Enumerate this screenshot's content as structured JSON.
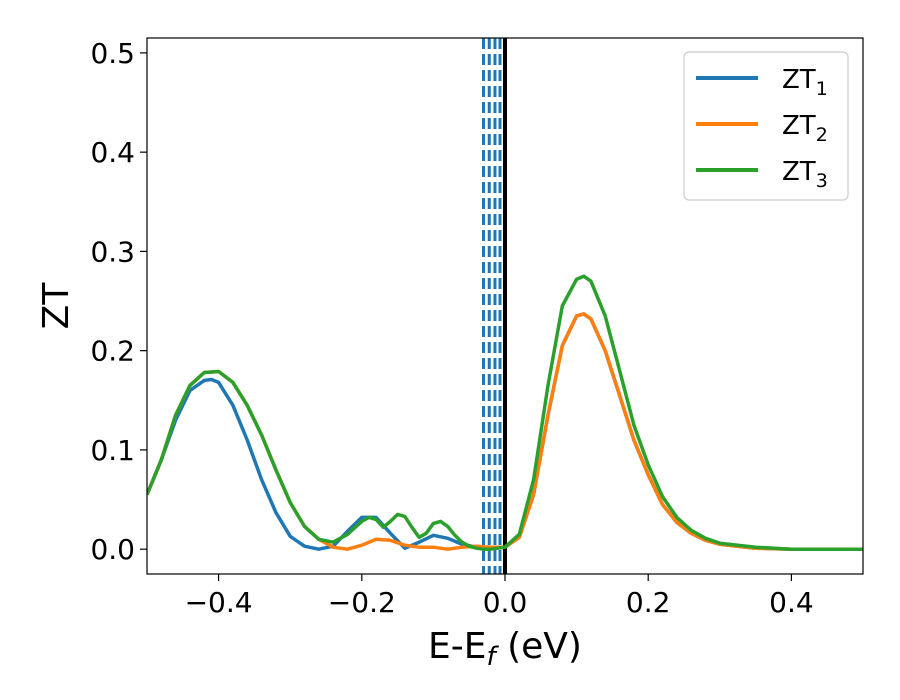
{
  "chart_data": {
    "type": "line",
    "xlabel_parts": {
      "base": "E-E",
      "sub": "f",
      "tail": " (eV)"
    },
    "ylabel": "ZT",
    "xlim": [
      -0.5,
      0.5
    ],
    "ylim": [
      -0.025,
      0.515
    ],
    "xticks": [
      -0.4,
      -0.2,
      0.0,
      0.2,
      0.4
    ],
    "xtick_labels": [
      "−0.4",
      "−0.2",
      "0.0",
      "0.2",
      "0.4"
    ],
    "yticks": [
      0.0,
      0.1,
      0.2,
      0.3,
      0.4,
      0.5
    ],
    "ytick_labels": [
      "0.0",
      "0.1",
      "0.2",
      "0.3",
      "0.4",
      "0.5"
    ],
    "grid": false,
    "legend_position": "top-right",
    "reference_lines": {
      "solid_black_x": 0.0,
      "dashed_blue_x": [
        -0.03,
        -0.022,
        -0.014,
        -0.007
      ]
    },
    "series": [
      {
        "name_base": "ZT",
        "name_sub": "1",
        "color": "#1f77b4",
        "x": [
          -0.5,
          -0.48,
          -0.46,
          -0.44,
          -0.42,
          -0.41,
          -0.4,
          -0.38,
          -0.36,
          -0.34,
          -0.32,
          -0.3,
          -0.28,
          -0.26,
          -0.24,
          -0.22,
          -0.2,
          -0.18,
          -0.16,
          -0.14,
          -0.12,
          -0.1,
          -0.08,
          -0.06,
          -0.04,
          -0.02,
          0.0,
          0.02,
          0.04,
          0.06,
          0.08,
          0.1,
          0.11,
          0.12,
          0.14,
          0.16,
          0.18,
          0.2,
          0.22,
          0.24,
          0.26,
          0.28,
          0.3,
          0.35,
          0.4,
          0.45,
          0.5
        ],
        "y": [
          0.055,
          0.09,
          0.13,
          0.16,
          0.17,
          0.171,
          0.168,
          0.145,
          0.11,
          0.07,
          0.037,
          0.013,
          0.003,
          0.0,
          0.003,
          0.018,
          0.032,
          0.032,
          0.016,
          0.001,
          0.007,
          0.014,
          0.011,
          0.005,
          0.002,
          0.001,
          0.002,
          0.012,
          0.055,
          0.135,
          0.205,
          0.235,
          0.237,
          0.232,
          0.2,
          0.155,
          0.11,
          0.075,
          0.045,
          0.027,
          0.016,
          0.009,
          0.005,
          0.001,
          0.0,
          0.0,
          0.0
        ]
      },
      {
        "name_base": "ZT",
        "name_sub": "2",
        "color": "#ff7f0e",
        "x": [
          -0.5,
          -0.48,
          -0.46,
          -0.44,
          -0.42,
          -0.4,
          -0.38,
          -0.36,
          -0.34,
          -0.32,
          -0.3,
          -0.28,
          -0.26,
          -0.24,
          -0.22,
          -0.2,
          -0.18,
          -0.16,
          -0.14,
          -0.12,
          -0.1,
          -0.08,
          -0.06,
          -0.04,
          -0.02,
          0.0,
          0.02,
          0.04,
          0.06,
          0.08,
          0.1,
          0.11,
          0.12,
          0.14,
          0.16,
          0.18,
          0.2,
          0.22,
          0.24,
          0.26,
          0.28,
          0.3,
          0.35,
          0.4,
          0.45,
          0.5
        ],
        "y": [
          0.055,
          0.09,
          0.135,
          0.165,
          0.178,
          0.179,
          0.168,
          0.145,
          0.115,
          0.08,
          0.047,
          0.023,
          0.01,
          0.002,
          0.0,
          0.004,
          0.01,
          0.009,
          0.004,
          0.002,
          0.002,
          0.0,
          0.002,
          0.003,
          0.002,
          0.002,
          0.012,
          0.055,
          0.135,
          0.205,
          0.235,
          0.237,
          0.232,
          0.2,
          0.155,
          0.11,
          0.075,
          0.045,
          0.027,
          0.016,
          0.009,
          0.005,
          0.001,
          0.0,
          0.0,
          0.0
        ]
      },
      {
        "name_base": "ZT",
        "name_sub": "3",
        "color": "#2ca02c",
        "x": [
          -0.5,
          -0.48,
          -0.46,
          -0.44,
          -0.42,
          -0.4,
          -0.38,
          -0.36,
          -0.34,
          -0.32,
          -0.3,
          -0.28,
          -0.26,
          -0.24,
          -0.22,
          -0.2,
          -0.19,
          -0.18,
          -0.17,
          -0.16,
          -0.15,
          -0.14,
          -0.13,
          -0.12,
          -0.11,
          -0.1,
          -0.09,
          -0.08,
          -0.07,
          -0.06,
          -0.05,
          -0.04,
          -0.03,
          -0.02,
          -0.01,
          0.0,
          0.02,
          0.04,
          0.06,
          0.08,
          0.1,
          0.11,
          0.12,
          0.14,
          0.16,
          0.18,
          0.2,
          0.22,
          0.24,
          0.26,
          0.28,
          0.3,
          0.35,
          0.4,
          0.45,
          0.5
        ],
        "y": [
          0.055,
          0.09,
          0.135,
          0.165,
          0.178,
          0.179,
          0.168,
          0.145,
          0.115,
          0.08,
          0.047,
          0.023,
          0.01,
          0.007,
          0.015,
          0.028,
          0.032,
          0.03,
          0.022,
          0.028,
          0.035,
          0.033,
          0.022,
          0.012,
          0.016,
          0.026,
          0.028,
          0.023,
          0.014,
          0.007,
          0.003,
          0.001,
          0.0,
          0.0,
          0.001,
          0.002,
          0.015,
          0.07,
          0.165,
          0.245,
          0.272,
          0.275,
          0.27,
          0.235,
          0.18,
          0.125,
          0.085,
          0.053,
          0.032,
          0.019,
          0.011,
          0.006,
          0.002,
          0.0,
          0.0,
          0.0
        ]
      }
    ]
  }
}
